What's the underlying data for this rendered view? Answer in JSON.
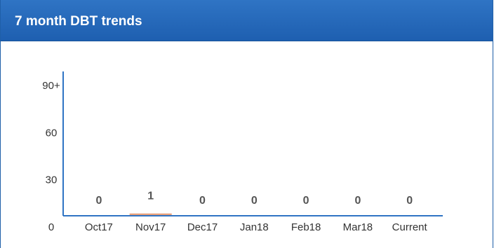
{
  "widget": {
    "title": "7 month DBT trends"
  },
  "colors": {
    "header_bg": "#1e5fb0",
    "axis": "#2f74c4",
    "bar": "#e8a07a"
  },
  "chart_data": {
    "type": "bar",
    "title": "",
    "xlabel": "",
    "ylabel": "",
    "categories": [
      "Oct17",
      "Nov17",
      "Dec17",
      "Jan18",
      "Feb18",
      "Mar18",
      "Current"
    ],
    "values": [
      0,
      1,
      0,
      0,
      0,
      0,
      0
    ],
    "data_labels": [
      "0",
      "1",
      "0",
      "0",
      "0",
      "0",
      "0"
    ],
    "y_ticks": [
      {
        "value": 0,
        "label": "0"
      },
      {
        "value": 30,
        "label": "30"
      },
      {
        "value": 60,
        "label": "60"
      },
      {
        "value": 90,
        "label": "90+"
      }
    ],
    "ylim": [
      0,
      90
    ],
    "grid": false,
    "legend": "none"
  }
}
